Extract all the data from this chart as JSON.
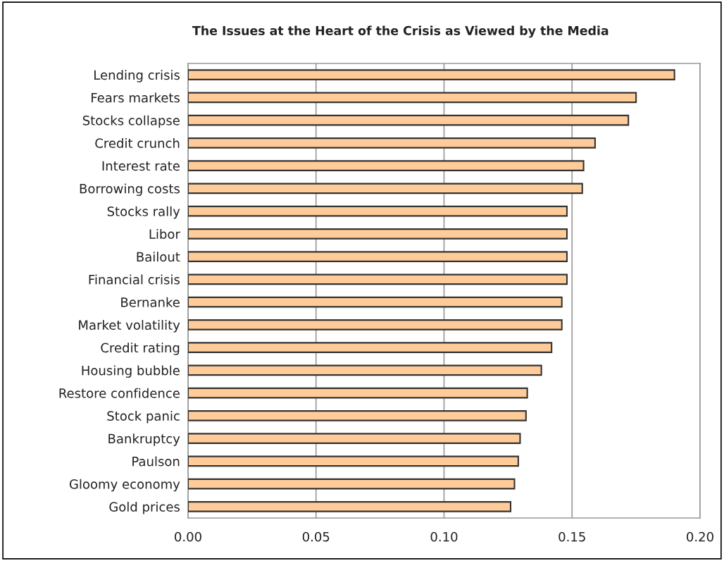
{
  "chart_data": {
    "type": "bar",
    "orientation": "horizontal",
    "title": "The Issues at the Heart of the Crisis as Viewed by the Media",
    "categories": [
      "Lending crisis",
      "Fears markets",
      "Stocks collapse",
      "Credit crunch",
      "Interest rate",
      "Borrowing costs",
      "Stocks rally",
      "Libor",
      "Bailout",
      "Financial crisis",
      "Bernanke",
      "Market volatility",
      "Credit rating",
      "Housing bubble",
      "Restore confidence",
      "Stock panic",
      "Bankruptcy",
      "Paulson",
      "Gloomy economy",
      "Gold prices"
    ],
    "values": [
      0.19,
      0.175,
      0.172,
      0.159,
      0.1545,
      0.154,
      0.148,
      0.148,
      0.148,
      0.148,
      0.146,
      0.146,
      0.142,
      0.138,
      0.1325,
      0.132,
      0.1297,
      0.129,
      0.1275,
      0.126
    ],
    "color": "#ffcc99",
    "xlim": [
      0,
      0.2
    ],
    "xticks": [
      {
        "value": 0,
        "label": "0.00"
      },
      {
        "value": 0.05,
        "label": "0.05"
      },
      {
        "value": 0.1,
        "label": "0.10"
      },
      {
        "value": 0.15,
        "label": "0.15"
      },
      {
        "value": 0.2,
        "label": "0.20"
      }
    ],
    "grid": "x",
    "legend": false
  }
}
